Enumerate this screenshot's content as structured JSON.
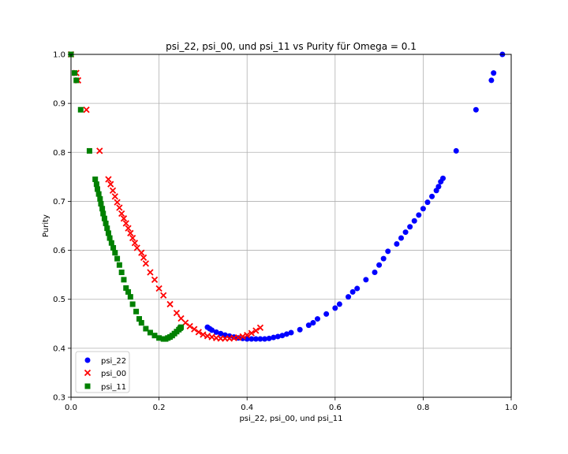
{
  "chart_data": {
    "type": "scatter",
    "title": "psi_22, psi_00, und psi_11 vs Purity für Omega = 0.1",
    "xlabel": "psi_22, psi_00, und psi_11",
    "ylabel": "Purity",
    "xlim": [
      0.0,
      1.0
    ],
    "ylim": [
      0.3,
      1.0
    ],
    "xticks": [
      "0.0",
      "0.2",
      "0.4",
      "0.6",
      "0.8",
      "1.0"
    ],
    "yticks": [
      "0.3",
      "0.4",
      "0.5",
      "0.6",
      "0.7",
      "0.8",
      "0.9",
      "1.0"
    ],
    "grid": true,
    "legend_position": "lower-left",
    "series": [
      {
        "name": "psi_22",
        "color": "#0000ff",
        "marker": "circle",
        "points": [
          [
            0.31,
            0.443
          ],
          [
            0.315,
            0.44
          ],
          [
            0.32,
            0.437
          ],
          [
            0.33,
            0.433
          ],
          [
            0.34,
            0.43
          ],
          [
            0.35,
            0.427
          ],
          [
            0.36,
            0.425
          ],
          [
            0.37,
            0.423
          ],
          [
            0.38,
            0.421
          ],
          [
            0.39,
            0.42
          ],
          [
            0.4,
            0.419
          ],
          [
            0.41,
            0.419
          ],
          [
            0.42,
            0.419
          ],
          [
            0.43,
            0.419
          ],
          [
            0.44,
            0.419
          ],
          [
            0.45,
            0.42
          ],
          [
            0.46,
            0.422
          ],
          [
            0.47,
            0.424
          ],
          [
            0.48,
            0.426
          ],
          [
            0.49,
            0.429
          ],
          [
            0.5,
            0.432
          ],
          [
            0.52,
            0.438
          ],
          [
            0.54,
            0.447
          ],
          [
            0.55,
            0.452
          ],
          [
            0.56,
            0.46
          ],
          [
            0.58,
            0.47
          ],
          [
            0.6,
            0.482
          ],
          [
            0.61,
            0.49
          ],
          [
            0.63,
            0.505
          ],
          [
            0.64,
            0.515
          ],
          [
            0.65,
            0.522
          ],
          [
            0.67,
            0.54
          ],
          [
            0.69,
            0.555
          ],
          [
            0.7,
            0.57
          ],
          [
            0.71,
            0.583
          ],
          [
            0.72,
            0.598
          ],
          [
            0.74,
            0.613
          ],
          [
            0.75,
            0.625
          ],
          [
            0.76,
            0.637
          ],
          [
            0.77,
            0.648
          ],
          [
            0.78,
            0.66
          ],
          [
            0.79,
            0.672
          ],
          [
            0.8,
            0.685
          ],
          [
            0.81,
            0.698
          ],
          [
            0.82,
            0.71
          ],
          [
            0.83,
            0.722
          ],
          [
            0.835,
            0.73
          ],
          [
            0.84,
            0.74
          ],
          [
            0.845,
            0.747
          ],
          [
            0.875,
            0.803
          ],
          [
            0.92,
            0.887
          ],
          [
            0.955,
            0.947
          ],
          [
            0.96,
            0.962
          ],
          [
            0.98,
            1.0
          ]
        ]
      },
      {
        "name": "psi_00",
        "color": "#ff0000",
        "marker": "x",
        "points": [
          [
            0.0,
            1.0
          ],
          [
            0.012,
            0.962
          ],
          [
            0.016,
            0.947
          ],
          [
            0.035,
            0.887
          ],
          [
            0.065,
            0.803
          ],
          [
            0.085,
            0.745
          ],
          [
            0.09,
            0.735
          ],
          [
            0.095,
            0.722
          ],
          [
            0.1,
            0.71
          ],
          [
            0.105,
            0.698
          ],
          [
            0.11,
            0.687
          ],
          [
            0.115,
            0.675
          ],
          [
            0.12,
            0.665
          ],
          [
            0.125,
            0.655
          ],
          [
            0.13,
            0.645
          ],
          [
            0.135,
            0.635
          ],
          [
            0.14,
            0.625
          ],
          [
            0.145,
            0.615
          ],
          [
            0.15,
            0.605
          ],
          [
            0.16,
            0.595
          ],
          [
            0.165,
            0.585
          ],
          [
            0.17,
            0.573
          ],
          [
            0.18,
            0.555
          ],
          [
            0.19,
            0.54
          ],
          [
            0.2,
            0.522
          ],
          [
            0.21,
            0.508
          ],
          [
            0.225,
            0.49
          ],
          [
            0.24,
            0.472
          ],
          [
            0.25,
            0.461
          ],
          [
            0.26,
            0.452
          ],
          [
            0.27,
            0.445
          ],
          [
            0.28,
            0.439
          ],
          [
            0.29,
            0.433
          ],
          [
            0.3,
            0.428
          ],
          [
            0.31,
            0.425
          ],
          [
            0.32,
            0.423
          ],
          [
            0.33,
            0.421
          ],
          [
            0.34,
            0.42
          ],
          [
            0.35,
            0.42
          ],
          [
            0.36,
            0.42
          ],
          [
            0.37,
            0.421
          ],
          [
            0.38,
            0.422
          ],
          [
            0.39,
            0.424
          ],
          [
            0.4,
            0.427
          ],
          [
            0.41,
            0.431
          ],
          [
            0.42,
            0.436
          ],
          [
            0.43,
            0.442
          ]
        ]
      },
      {
        "name": "psi_11",
        "color": "#008000",
        "marker": "square",
        "points": [
          [
            0.0,
            1.0
          ],
          [
            0.008,
            0.962
          ],
          [
            0.012,
            0.947
          ],
          [
            0.022,
            0.887
          ],
          [
            0.042,
            0.803
          ],
          [
            0.055,
            0.745
          ],
          [
            0.058,
            0.735
          ],
          [
            0.06,
            0.725
          ],
          [
            0.063,
            0.715
          ],
          [
            0.066,
            0.705
          ],
          [
            0.068,
            0.695
          ],
          [
            0.071,
            0.685
          ],
          [
            0.073,
            0.675
          ],
          [
            0.076,
            0.665
          ],
          [
            0.079,
            0.655
          ],
          [
            0.082,
            0.645
          ],
          [
            0.085,
            0.635
          ],
          [
            0.088,
            0.625
          ],
          [
            0.092,
            0.615
          ],
          [
            0.096,
            0.605
          ],
          [
            0.1,
            0.595
          ],
          [
            0.105,
            0.583
          ],
          [
            0.11,
            0.57
          ],
          [
            0.115,
            0.555
          ],
          [
            0.12,
            0.54
          ],
          [
            0.125,
            0.523
          ],
          [
            0.13,
            0.515
          ],
          [
            0.135,
            0.505
          ],
          [
            0.14,
            0.49
          ],
          [
            0.148,
            0.475
          ],
          [
            0.155,
            0.46
          ],
          [
            0.16,
            0.452
          ],
          [
            0.17,
            0.44
          ],
          [
            0.18,
            0.432
          ],
          [
            0.19,
            0.426
          ],
          [
            0.2,
            0.421
          ],
          [
            0.21,
            0.419
          ],
          [
            0.215,
            0.419
          ],
          [
            0.22,
            0.421
          ],
          [
            0.225,
            0.423
          ],
          [
            0.23,
            0.426
          ],
          [
            0.235,
            0.43
          ],
          [
            0.24,
            0.434
          ],
          [
            0.245,
            0.438
          ],
          [
            0.248,
            0.441
          ],
          [
            0.25,
            0.443
          ]
        ]
      }
    ]
  }
}
